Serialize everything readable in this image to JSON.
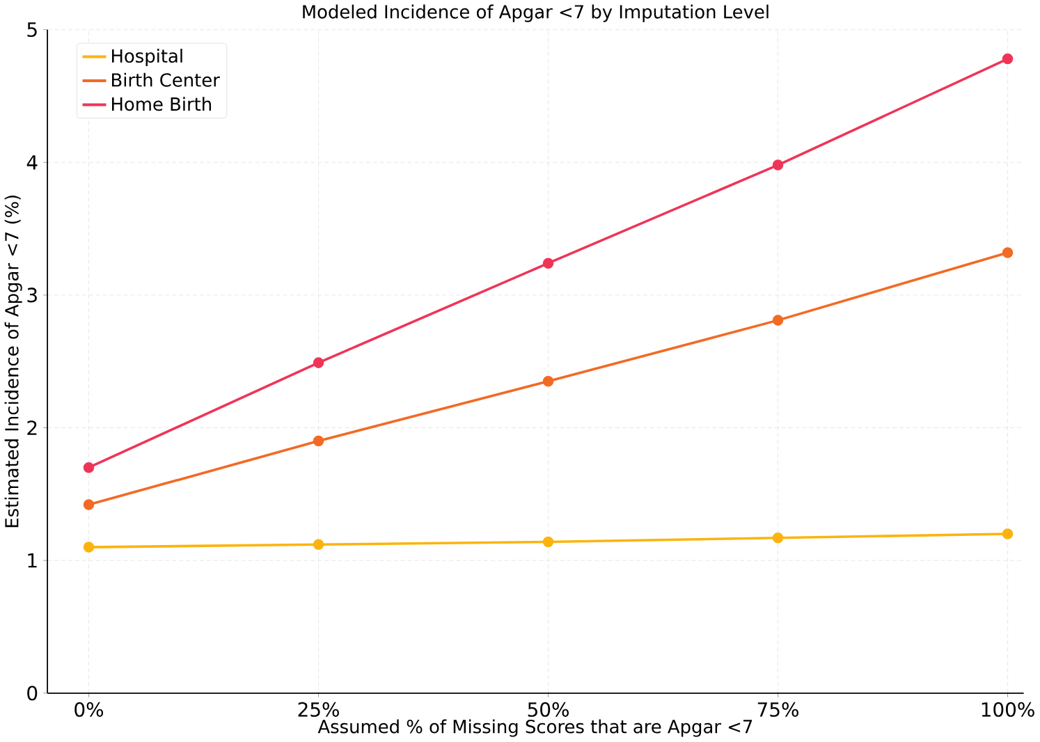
{
  "chart_data": {
    "type": "line",
    "title": "Modeled Incidence of Apgar <7 by Imputation Level",
    "xlabel": "Assumed % of Missing Scores that are Apgar <7",
    "ylabel": "Estimated Incidence of Apgar <7 (%)",
    "categories": [
      "0%",
      "25%",
      "50%",
      "75%",
      "100%"
    ],
    "series": [
      {
        "name": "Hospital",
        "color": "#fbb40f",
        "values": [
          1.1,
          1.12,
          1.14,
          1.17,
          1.2
        ]
      },
      {
        "name": "Birth Center",
        "color": "#f26a24",
        "values": [
          1.42,
          1.9,
          2.35,
          2.81,
          3.32
        ]
      },
      {
        "name": "Home Birth",
        "color": "#ee3558",
        "values": [
          1.7,
          2.49,
          3.24,
          3.98,
          4.78
        ]
      }
    ],
    "ylim": [
      0,
      5
    ],
    "yticks": [
      0,
      1,
      2,
      3,
      4,
      5
    ],
    "grid": true,
    "legend": "top left",
    "marker": "circle",
    "line_style": "solid"
  }
}
